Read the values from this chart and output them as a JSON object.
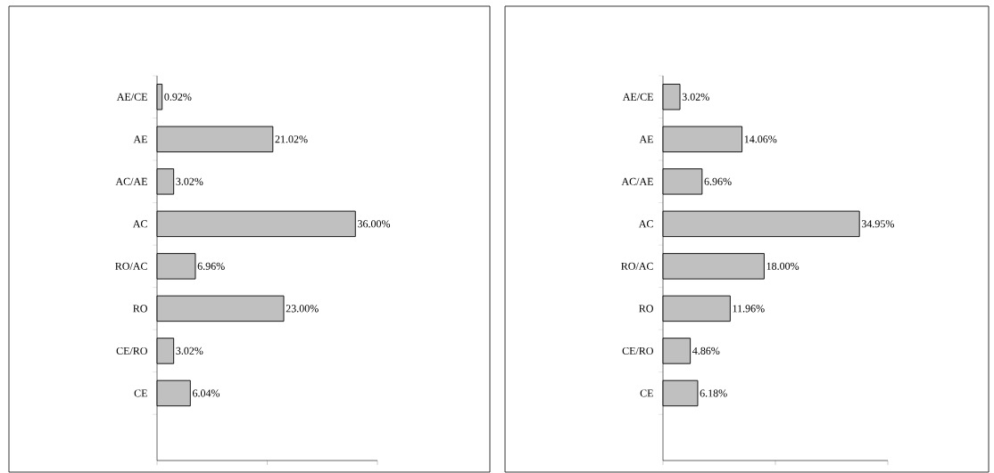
{
  "chart_data": [
    {
      "type": "bar",
      "orientation": "horizontal",
      "categories": [
        "AE/CE",
        "AE",
        "AC/AE",
        "AC",
        "RO/AC",
        "RO",
        "CE/RO",
        "CE"
      ],
      "values": [
        0.92,
        21.02,
        3.02,
        36.0,
        6.96,
        23.0,
        3.02,
        6.04
      ],
      "value_labels": [
        "0.92%",
        "21.02%",
        "3.02%",
        "36.00%",
        "6.96%",
        "23.00%",
        "3.02%",
        "6.04%"
      ],
      "color": "#c0c0c0",
      "xlim": [
        0,
        40
      ],
      "xticks": [
        {
          "value": 0,
          "label": null
        },
        {
          "value": 20,
          "label": null
        },
        {
          "value": 40,
          "label": null
        }
      ],
      "tick_labels": "y",
      "grid": false
    },
    {
      "type": "bar",
      "orientation": "horizontal",
      "categories": [
        "AE/CE",
        "AE",
        "AC/AE",
        "AC",
        "RO/AC",
        "RO",
        "CE/RO",
        "CE"
      ],
      "values": [
        3.02,
        14.06,
        6.96,
        34.95,
        18.0,
        11.96,
        4.86,
        6.18
      ],
      "value_labels": [
        "3.02%",
        "14.06%",
        "6.96%",
        "34.95%",
        "18.00%",
        "11.96%",
        "4.86%",
        "6.18%"
      ],
      "color": "#c0c0c0",
      "xlim": [
        0,
        40
      ],
      "xticks": [
        {
          "value": 0,
          "label": null
        },
        {
          "value": 20,
          "label": null
        },
        {
          "value": 40,
          "label": null
        }
      ],
      "tick_labels": "y",
      "grid": false
    }
  ]
}
